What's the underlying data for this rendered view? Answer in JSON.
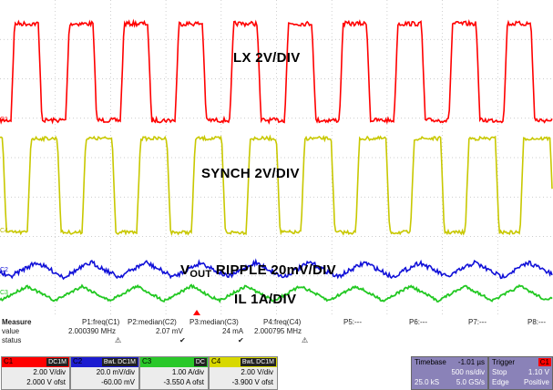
{
  "annotations": {
    "lx": "LX 2V/DIV",
    "synch": "SYNCH 2V/DIV",
    "vout_main": "V",
    "vout_sub": "OUT",
    "vout_rest": " RIPPLE 20mV/DIV",
    "il": "IL 1A/DIV"
  },
  "channel_markers": {
    "c1": "C1",
    "c2": "C2",
    "c3": "C3",
    "c4": "C4"
  },
  "colors": {
    "c1": "#ff0000",
    "c2": "#1010d8",
    "c3": "#22c822",
    "c4": "#c8c800"
  },
  "measure": {
    "heading": "Measure",
    "row_labels": [
      "value",
      "status"
    ],
    "params": [
      {
        "name": "P1:freq(C1)",
        "value": "2.000390 MHz",
        "status": "⚠"
      },
      {
        "name": "P2:median(C2)",
        "value": "2.07 mV",
        "status": "✔"
      },
      {
        "name": "P3:median(C3)",
        "value": "24 mA",
        "status": "✔"
      },
      {
        "name": "P4:freq(C4)",
        "value": "2.000795 MHz",
        "status": "⚠"
      },
      {
        "name": "P5:---",
        "value": "",
        "status": ""
      },
      {
        "name": "P6:---",
        "value": "",
        "status": ""
      },
      {
        "name": "P7:---",
        "value": "",
        "status": ""
      },
      {
        "name": "P8:---",
        "value": "",
        "status": ""
      }
    ]
  },
  "channels": [
    {
      "label": "C1",
      "coupling": "DC1M",
      "scale": "2.00 V/div",
      "offset": "2.000 V ofst"
    },
    {
      "label": "C2",
      "coupling": "BwL DC1M",
      "scale": "20.0 mV/div",
      "offset": "-60.00 mV"
    },
    {
      "label": "C3",
      "coupling": "DC",
      "scale": "1.00 A/div",
      "offset": "-3.550 A ofst"
    },
    {
      "label": "C4",
      "coupling": "BwL DC1M",
      "scale": "2.00 V/div",
      "offset": "-3.900 V ofst"
    }
  ],
  "timebase": {
    "label": "Timebase",
    "delay": "-1.01 µs",
    "per_div": "500 ns/div",
    "samples": "25.0 kS",
    "rate": "5.0 GS/s"
  },
  "trigger": {
    "label": "Trigger",
    "channel": "C1",
    "mode": "Stop",
    "level": "1.10 V",
    "type": "Edge",
    "slope": "Positive"
  }
}
